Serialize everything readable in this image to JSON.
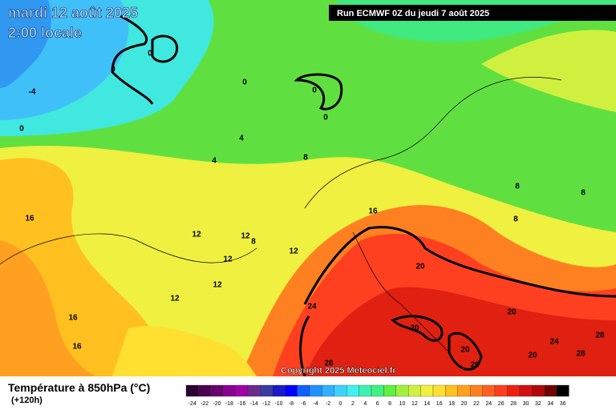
{
  "header": {
    "title": "mardi 12 août 2025",
    "subtitle": "2:00 locale",
    "run": "Run ECMWF 0Z du jeudi 7 août 2025",
    "copyright": "Copyright 2025 Meteociel.fr"
  },
  "legend": {
    "title": "Température à 850hPa (°C)",
    "lead": "(+120h)",
    "labels": [
      -24,
      -22,
      -20,
      -18,
      -16,
      -14,
      -12,
      -10,
      -8,
      -6,
      -4,
      -2,
      0,
      2,
      4,
      6,
      8,
      10,
      12,
      14,
      16,
      18,
      20,
      22,
      24,
      26,
      28,
      30,
      32,
      34,
      36
    ],
    "colors": [
      "#2a0030",
      "#4b0050",
      "#6a0070",
      "#8a0090",
      "#a000a8",
      "#6b2a8c",
      "#3a3aa0",
      "#1a1ac8",
      "#0000ff",
      "#1060ff",
      "#2090ff",
      "#30b0ff",
      "#40d0ff",
      "#40f0f0",
      "#40f0b0",
      "#40f080",
      "#60f040",
      "#a0f040",
      "#d0f040",
      "#f0f040",
      "#ffe030",
      "#ffc020",
      "#ffa020",
      "#ff8020",
      "#ff6020",
      "#ff4020",
      "#f02010",
      "#d01010",
      "#b00808",
      "#700000",
      "#000000"
    ]
  },
  "map": {
    "contour_labels": [
      "0",
      "0",
      "0",
      "0",
      "0",
      "-4",
      "0",
      "4",
      "4",
      "8",
      "16",
      "12",
      "12",
      "8",
      "12",
      "12",
      "12",
      "12",
      "16",
      "8",
      "8",
      "8",
      "20",
      "24",
      "16",
      "16",
      "20",
      "20",
      "24",
      "28",
      "20",
      "20",
      "28",
      "20",
      "28"
    ]
  }
}
